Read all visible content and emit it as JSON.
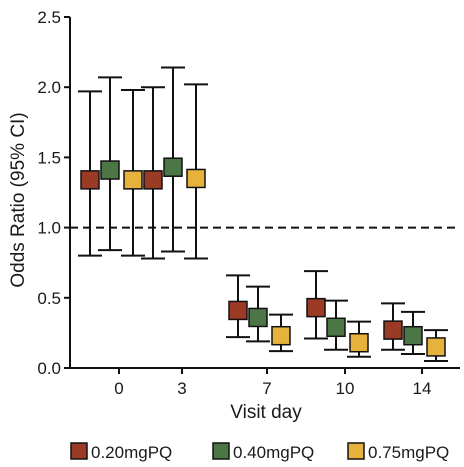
{
  "chart_data": {
    "type": "scatter",
    "title": "",
    "xlabel": "Visit day",
    "ylabel": "Odds Ratio (95% CI)",
    "ylim": [
      0.0,
      2.5
    ],
    "yticks": [
      "0.0",
      "0.5",
      "1.0",
      "1.5",
      "2.0",
      "2.5"
    ],
    "categories": [
      "0",
      "3",
      "7",
      "10",
      "14"
    ],
    "reference_line": 1.0,
    "grid": false,
    "legend_position": "bottom",
    "series": [
      {
        "name": "0.20mgPQ",
        "color": "#9b3a25",
        "values": [
          1.34,
          1.34,
          0.41,
          0.43,
          0.27
        ],
        "ci_low": [
          0.8,
          0.78,
          0.22,
          0.21,
          0.13
        ],
        "ci_high": [
          1.97,
          2.0,
          0.66,
          0.69,
          0.46
        ]
      },
      {
        "name": "0.40mgPQ",
        "color": "#4d7647",
        "values": [
          1.41,
          1.43,
          0.36,
          0.29,
          0.23
        ],
        "ci_low": [
          0.84,
          0.83,
          0.19,
          0.13,
          0.1
        ],
        "ci_high": [
          2.07,
          2.14,
          0.58,
          0.48,
          0.4
        ]
      },
      {
        "name": "0.75mgPQ",
        "color": "#e7b23c",
        "values": [
          1.34,
          1.35,
          0.23,
          0.18,
          0.15
        ],
        "ci_low": [
          0.8,
          0.78,
          0.12,
          0.08,
          0.05
        ],
        "ci_high": [
          1.98,
          2.02,
          0.38,
          0.33,
          0.27
        ]
      }
    ]
  }
}
